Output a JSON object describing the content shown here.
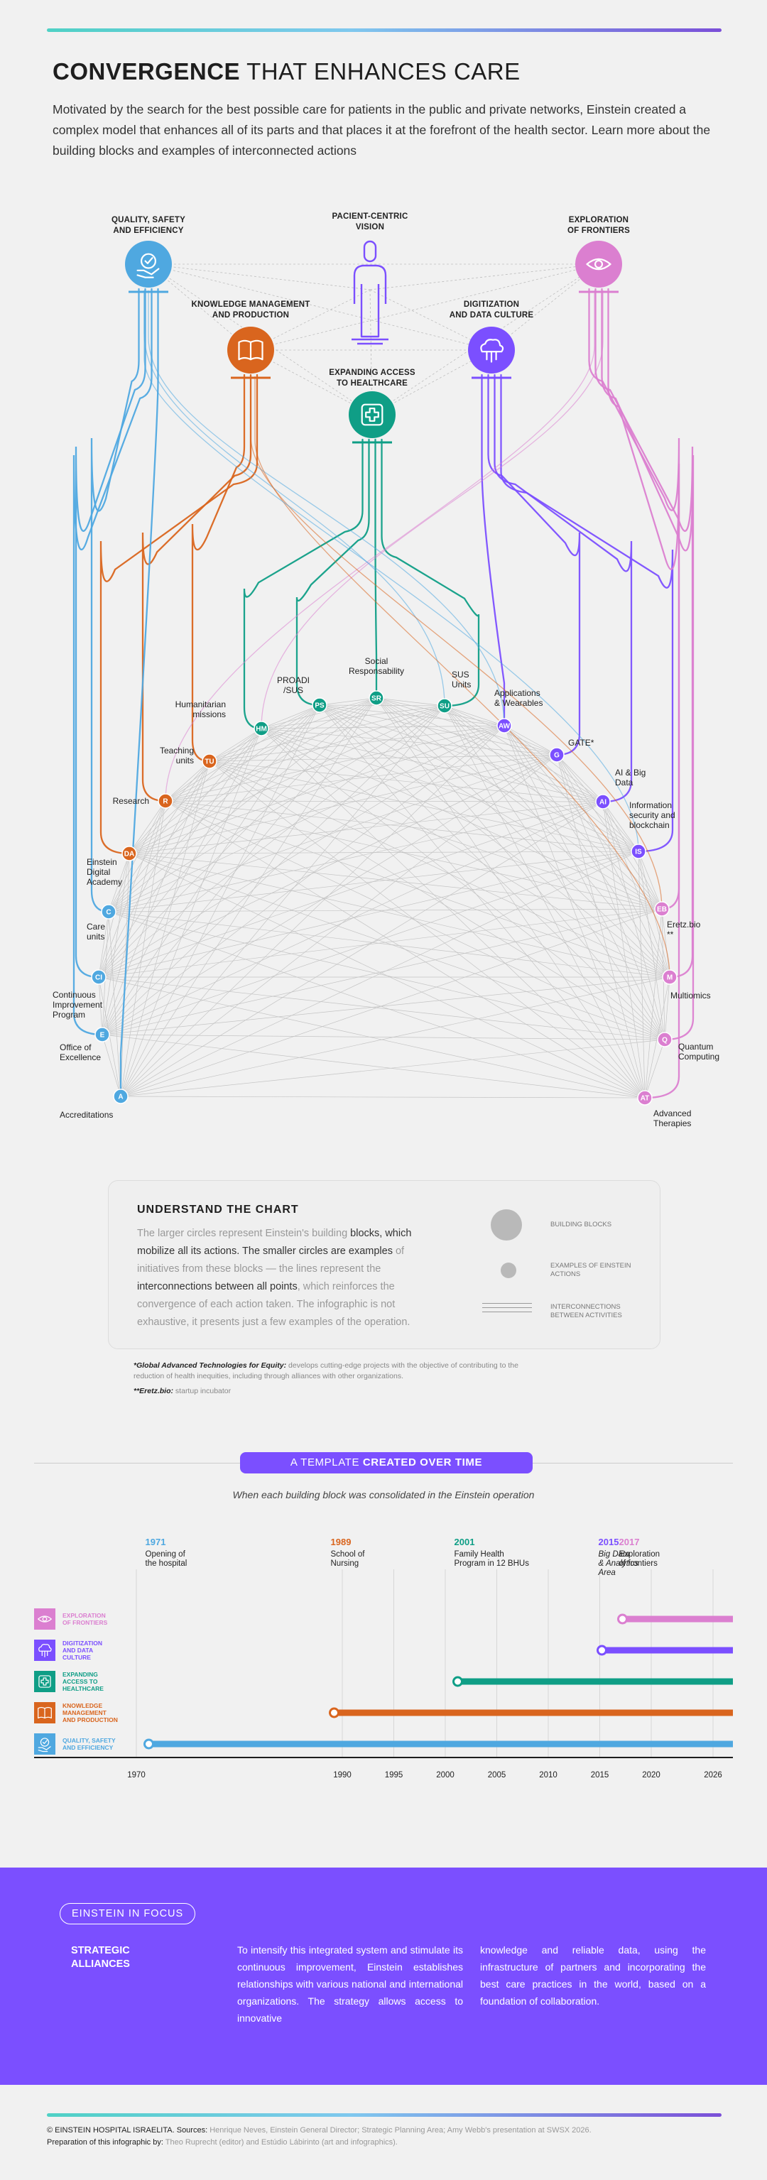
{
  "header": {
    "title_bold": "CONVERGENCE",
    "title_rest": " THAT ENHANCES CARE",
    "intro": "Motivated by the search for the best possible care for patients in the public and private networks, Einstein created a complex model that enhances all of its parts and that places it at the forefront of the health sector. Learn more about the building blocks and examples of interconnected actions"
  },
  "colors": {
    "quality": "#4fa8e0",
    "knowledge": "#d9651e",
    "access": "#0f9e86",
    "digital": "#7b4fff",
    "frontiers": "#db7fd0",
    "neutral": "#8c8c8c"
  },
  "diagram": {
    "blocks": [
      {
        "key": "quality",
        "label_lines": [
          "QUALITY, SAFETY",
          "AND EFFICIENCY"
        ],
        "icon": "check-hand-icon"
      },
      {
        "key": "knowledge",
        "label_lines": [
          "KNOWLEDGE MANAGEMENT",
          "AND PRODUCTION"
        ],
        "icon": "open-book-icon"
      },
      {
        "key": "vision",
        "label_lines": [
          "PACIENT-CENTRIC",
          "VISION"
        ],
        "icon": "person-icon"
      },
      {
        "key": "access",
        "label_lines": [
          "EXPANDING ACCESS",
          "TO HEALTHCARE"
        ],
        "icon": "medical-cross-icon"
      },
      {
        "key": "digital",
        "label_lines": [
          "DIGITIZATION",
          "AND DATA CULTURE"
        ],
        "icon": "cloud-circuit-icon"
      },
      {
        "key": "frontiers",
        "label_lines": [
          "EXPLORATION",
          "OF FRONTIERS"
        ],
        "icon": "eye-icon"
      }
    ],
    "actions": [
      {
        "code": "HM",
        "block": "access",
        "label_lines": [
          "Humanitarian",
          "missions"
        ]
      },
      {
        "code": "PS",
        "block": "access",
        "label_lines": [
          "PROADI",
          "/SUS"
        ]
      },
      {
        "code": "SR",
        "block": "access",
        "label_lines": [
          "Social",
          "Responsability"
        ]
      },
      {
        "code": "SU",
        "block": "access",
        "label_lines": [
          "SUS",
          "Units"
        ]
      },
      {
        "code": "AW",
        "block": "digital",
        "label_lines": [
          "Applications",
          "& Wearables"
        ]
      },
      {
        "code": "G",
        "block": "digital",
        "label_lines": [
          "GATE*"
        ]
      },
      {
        "code": "AI",
        "block": "digital",
        "label_lines": [
          "AI & Big",
          "Data"
        ]
      },
      {
        "code": "IS",
        "block": "digital",
        "label_lines": [
          "Information",
          "security and",
          "blockchain"
        ]
      },
      {
        "code": "EB",
        "block": "frontiers",
        "label_lines": [
          "Eretz.bio",
          "**"
        ]
      },
      {
        "code": "M",
        "block": "frontiers",
        "label_lines": [
          "Multiomics"
        ]
      },
      {
        "code": "Q",
        "block": "frontiers",
        "label_lines": [
          "Quantum",
          "Computing"
        ]
      },
      {
        "code": "AT",
        "block": "frontiers",
        "label_lines": [
          "Advanced",
          "Therapies"
        ]
      },
      {
        "code": "TU",
        "block": "knowledge",
        "label_lines": [
          "Teaching",
          "units"
        ]
      },
      {
        "code": "R",
        "block": "knowledge",
        "label_lines": [
          "Research"
        ]
      },
      {
        "code": "DA",
        "block": "knowledge",
        "label_lines": [
          "Einstein",
          "Digital",
          "Academy"
        ]
      },
      {
        "code": "C",
        "block": "quality",
        "label_lines": [
          "Care",
          "units"
        ]
      },
      {
        "code": "CI",
        "block": "quality",
        "label_lines": [
          "Continuous",
          "Improvement",
          "Program"
        ]
      },
      {
        "code": "E",
        "block": "quality",
        "label_lines": [
          "Office of",
          "Excellence"
        ]
      },
      {
        "code": "A",
        "block": "quality",
        "label_lines": [
          "Accreditations"
        ]
      }
    ]
  },
  "legend": {
    "title": "UNDERSTAND THE CHART",
    "t1": "The larger circles represent Einstein's building ",
    "t2": "blocks, which mobilize all its actions. The smaller circles are examples",
    "t3": " of initiatives from these blocks — the lines represent the ",
    "t4": "interconnections between all points",
    "t5": ", which reinforces the convergence of each action taken. The infographic is not exhaustive, it presents just a few examples of the operation.",
    "items": [
      "BUILDING BLOCKS",
      "EXAMPLES OF EINSTEIN ACTIONS",
      "INTERCONNECTIONS BETWEEN ACTIVITIES"
    ]
  },
  "footnotes": {
    "gate_term": "*Global Advanced Technologies for Equity:",
    "gate_text": " develops cutting-edge projects with the objective of contributing to the reduction of health inequities, including through alliances with other organizations.",
    "eretz_term": "**Eretz.bio:",
    "eretz_text": " startup incubator"
  },
  "timeline": {
    "title_light": "A TEMPLATE ",
    "title_bold": "CREATED OVER TIME",
    "subtitle": "When each building block was consolidated in the Einstein operation",
    "events": [
      {
        "year": 1971,
        "key": "quality",
        "text_lines": [
          "Opening of",
          "the hospital"
        ],
        "italic": false
      },
      {
        "year": 1989,
        "key": "knowledge",
        "text_lines": [
          "School of",
          "Nursing"
        ],
        "italic": false
      },
      {
        "year": 2001,
        "key": "access",
        "text_lines": [
          "Family Health",
          "Program in 12 BHUs"
        ],
        "italic": false
      },
      {
        "year": 2015,
        "key": "digital",
        "text_lines": [
          "Big Data",
          "& Analytics",
          "Area"
        ],
        "italic": true
      },
      {
        "year": 2017,
        "key": "frontiers",
        "text_lines": [
          "Exploration",
          "of frontiers"
        ],
        "italic": false
      }
    ],
    "rows": [
      {
        "key": "frontiers",
        "label_lines": [
          "EXPLORATION",
          "OF FRONTIERS"
        ],
        "start": 2017,
        "icon": "eye-icon"
      },
      {
        "key": "digital",
        "label_lines": [
          "DIGITIZATION",
          "AND DATA",
          "CULTURE"
        ],
        "start": 2015,
        "icon": "cloud-circuit-icon"
      },
      {
        "key": "access",
        "label_lines": [
          "EXPANDING",
          "ACCESS TO",
          "HEALTHCARE"
        ],
        "start": 2001,
        "icon": "medical-cross-icon"
      },
      {
        "key": "knowledge",
        "label_lines": [
          "KNOWLEDGE",
          "MANAGEMENT",
          "AND PRODUCTION"
        ],
        "start": 1989,
        "icon": "open-book-icon"
      },
      {
        "key": "quality",
        "label_lines": [
          "QUALITY, SAFETY",
          "AND EFFICIENCY"
        ],
        "start": 1971,
        "icon": "check-hand-icon"
      }
    ],
    "ticks": [
      1970,
      1990,
      1995,
      2000,
      2005,
      2010,
      2015,
      2020,
      2026
    ],
    "end_year": 2026
  },
  "focus": {
    "pill": "EINSTEIN IN FOCUS",
    "heading_lines": [
      "STRATEGIC",
      "ALLIANCES"
    ],
    "col1": "To intensify this integrated system and stimulate its continuous improvement, Einstein establishes relationships with various national and international organizations. The strategy allows access to innovative",
    "col2": "knowledge and reliable data, using the infrastructure of partners and incorporating the best care practices in the world, based on a foundation of collaboration."
  },
  "credits": {
    "org": "© EINSTEIN HOSPITAL ISRAELITA.",
    "sources_label": " Sources: ",
    "sources": "Henrique Neves, Einstein General Director; Strategic Planning Area; Amy Webb's presentation at SWSX 2026.",
    "prep_label": "Preparation of this infographic by: ",
    "prep": "Theo Ruprecht (editor) and Estúdio Lábirinto (art and infographics)."
  }
}
